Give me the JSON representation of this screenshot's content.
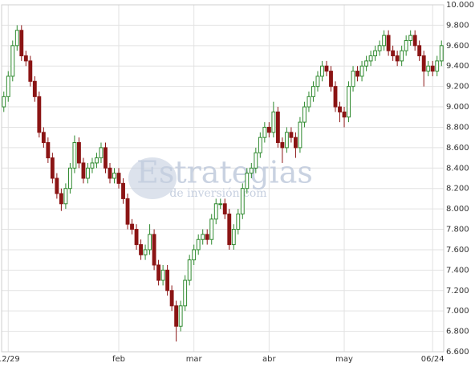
{
  "chart_data": {
    "type": "candlestick",
    "watermark": "Estrategias",
    "watermark_sub": "de inversión.com",
    "up_color": "#2f8a2f",
    "down_color": "#8b1414",
    "xlim": [
      -0.5,
      99.5
    ],
    "xticks": [
      {
        "value": 1,
        "label": "12/29"
      },
      {
        "value": 26,
        "label": "feb"
      },
      {
        "value": 43,
        "label": "mar"
      },
      {
        "value": 60,
        "label": "abr"
      },
      {
        "value": 77,
        "label": "may"
      },
      {
        "value": 97,
        "label": "06/24"
      }
    ],
    "ylim": [
      6.6,
      10
    ],
    "yticks": [
      {
        "value": 6.6,
        "label": "6.600"
      },
      {
        "value": 6.8,
        "label": "6.800"
      },
      {
        "value": 7,
        "label": "7.000"
      },
      {
        "value": 7.2,
        "label": "7.200"
      },
      {
        "value": 7.4,
        "label": "7.400"
      },
      {
        "value": 7.6,
        "label": "7.600"
      },
      {
        "value": 7.8,
        "label": "7.800"
      },
      {
        "value": 8,
        "label": "8.000"
      },
      {
        "value": 8.2,
        "label": "8.200"
      },
      {
        "value": 8.4,
        "label": "8.400"
      },
      {
        "value": 8.6,
        "label": "8.600"
      },
      {
        "value": 8.8,
        "label": "8.800"
      },
      {
        "value": 9,
        "label": "9.000"
      },
      {
        "value": 9.2,
        "label": "9.200"
      },
      {
        "value": 9.4,
        "label": "9.400"
      },
      {
        "value": 9.6,
        "label": "9.600"
      },
      {
        "value": 9.8,
        "label": "9.800"
      },
      {
        "value": 10,
        "label": "10.000"
      }
    ],
    "grid": true,
    "open": [
      9.0,
      9.1,
      9.3,
      9.6,
      9.75,
      9.5,
      9.45,
      9.25,
      9.1,
      8.75,
      8.65,
      8.5,
      8.3,
      8.15,
      8.05,
      8.2,
      8.4,
      8.65,
      8.45,
      8.3,
      8.4,
      8.45,
      8.5,
      8.6,
      8.4,
      8.3,
      8.35,
      8.25,
      8.1,
      7.85,
      7.8,
      7.65,
      7.55,
      7.6,
      7.75,
      7.45,
      7.3,
      7.4,
      7.2,
      7.05,
      6.85,
      7.05,
      7.3,
      7.5,
      7.6,
      7.7,
      7.75,
      7.7,
      7.9,
      8.05,
      8.05,
      7.95,
      7.65,
      7.8,
      7.95,
      8.2,
      8.35,
      8.4,
      8.55,
      8.7,
      8.8,
      8.75,
      8.95,
      8.65,
      8.6,
      8.75,
      8.7,
      8.6,
      8.85,
      9.0,
      9.1,
      9.2,
      9.3,
      9.4,
      9.35,
      9.2,
      9.0,
      8.95,
      8.9,
      9.2,
      9.35,
      9.3,
      9.4,
      9.45,
      9.5,
      9.55,
      9.6,
      9.7,
      9.55,
      9.5,
      9.45,
      9.55,
      9.65,
      9.7,
      9.6,
      9.5,
      9.35,
      9.4,
      9.35,
      9.45
    ],
    "high": [
      9.15,
      9.35,
      9.65,
      9.8,
      9.8,
      9.55,
      9.5,
      9.3,
      9.15,
      8.8,
      8.7,
      8.55,
      8.35,
      8.2,
      8.25,
      8.45,
      8.72,
      8.7,
      8.5,
      8.45,
      8.5,
      8.55,
      8.65,
      8.65,
      8.45,
      8.4,
      8.4,
      8.3,
      8.15,
      7.9,
      7.85,
      7.7,
      7.65,
      7.85,
      7.8,
      7.5,
      7.45,
      7.45,
      7.25,
      7.1,
      7.1,
      7.35,
      7.55,
      7.65,
      7.75,
      7.8,
      7.8,
      7.95,
      8.1,
      8.1,
      8.1,
      8.0,
      7.85,
      8.0,
      8.25,
      8.4,
      8.45,
      8.6,
      8.75,
      8.85,
      8.85,
      9.05,
      9.0,
      8.7,
      8.8,
      8.8,
      8.75,
      8.9,
      9.05,
      9.15,
      9.25,
      9.35,
      9.45,
      9.45,
      9.4,
      9.25,
      9.05,
      9.0,
      9.25,
      9.4,
      9.4,
      9.45,
      9.5,
      9.55,
      9.6,
      9.65,
      9.75,
      9.75,
      9.6,
      9.55,
      9.6,
      9.7,
      9.75,
      9.75,
      9.65,
      9.55,
      9.45,
      9.45,
      9.5,
      9.65
    ],
    "low": [
      8.95,
      9.05,
      9.25,
      9.55,
      9.45,
      9.4,
      9.2,
      9.05,
      8.7,
      8.6,
      8.45,
      8.25,
      8.1,
      7.98,
      8.0,
      8.15,
      8.35,
      8.4,
      8.25,
      8.25,
      8.35,
      8.4,
      8.45,
      8.35,
      8.25,
      8.25,
      8.2,
      8.05,
      7.8,
      7.75,
      7.6,
      7.5,
      7.5,
      7.55,
      7.4,
      7.25,
      7.25,
      7.15,
      7.0,
      6.7,
      6.8,
      7.0,
      7.25,
      7.45,
      7.55,
      7.65,
      7.65,
      7.65,
      7.85,
      8.0,
      7.9,
      7.6,
      7.6,
      7.75,
      7.9,
      8.15,
      8.3,
      8.35,
      8.5,
      8.65,
      8.7,
      8.7,
      8.6,
      8.45,
      8.55,
      8.65,
      8.5,
      8.55,
      8.8,
      8.95,
      9.05,
      9.15,
      9.25,
      9.3,
      9.15,
      8.95,
      8.85,
      8.8,
      8.85,
      9.15,
      9.25,
      9.25,
      9.35,
      9.4,
      9.45,
      9.5,
      9.55,
      9.5,
      9.45,
      9.4,
      9.4,
      9.5,
      9.6,
      9.55,
      9.45,
      9.2,
      9.3,
      9.3,
      9.3,
      9.4
    ],
    "close": [
      9.1,
      9.3,
      9.6,
      9.75,
      9.5,
      9.45,
      9.25,
      9.1,
      8.75,
      8.65,
      8.5,
      8.3,
      8.15,
      8.05,
      8.2,
      8.4,
      8.65,
      8.45,
      8.3,
      8.4,
      8.45,
      8.5,
      8.6,
      8.4,
      8.3,
      8.35,
      8.25,
      8.1,
      7.85,
      7.8,
      7.65,
      7.55,
      7.6,
      7.75,
      7.45,
      7.3,
      7.4,
      7.2,
      7.05,
      6.85,
      7.05,
      7.3,
      7.5,
      7.6,
      7.7,
      7.75,
      7.7,
      7.9,
      8.05,
      8.05,
      7.95,
      7.65,
      7.8,
      7.95,
      8.2,
      8.35,
      8.4,
      8.55,
      8.7,
      8.8,
      8.75,
      8.95,
      8.65,
      8.6,
      8.75,
      8.7,
      8.6,
      8.85,
      9.0,
      9.1,
      9.2,
      9.3,
      9.4,
      9.35,
      9.2,
      9.0,
      8.95,
      8.9,
      9.2,
      9.35,
      9.3,
      9.4,
      9.45,
      9.5,
      9.55,
      9.6,
      9.7,
      9.55,
      9.5,
      9.45,
      9.55,
      9.65,
      9.7,
      9.6,
      9.5,
      9.35,
      9.4,
      9.35,
      9.45,
      9.6
    ]
  }
}
